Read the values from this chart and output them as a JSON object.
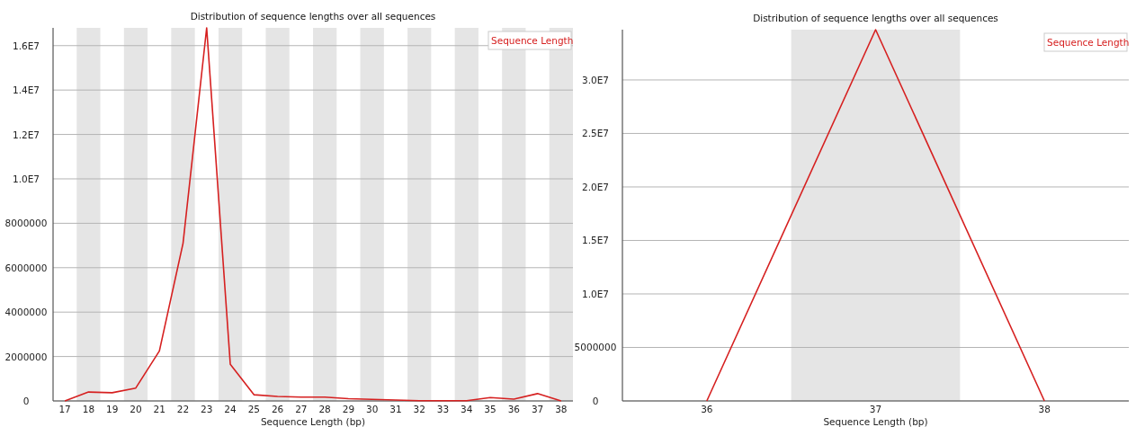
{
  "chart_data": [
    {
      "type": "line",
      "title": "Distribution of sequence lengths over all sequences",
      "xlabel": "Sequence Length (bp)",
      "x": [
        17,
        18,
        19,
        20,
        21,
        22,
        23,
        24,
        25,
        26,
        27,
        28,
        29,
        30,
        31,
        32,
        33,
        34,
        35,
        36,
        37,
        38
      ],
      "series": [
        {
          "name": "Sequence Length",
          "color": "#d62020",
          "values": [
            0,
            400000,
            370000,
            580000,
            2250000,
            7100000,
            16800000,
            1650000,
            280000,
            200000,
            170000,
            170000,
            100000,
            70000,
            40000,
            10000,
            10000,
            10000,
            150000,
            80000,
            330000,
            0
          ]
        }
      ],
      "xlim": [
        16.5,
        38.5
      ],
      "xticks": [
        17,
        18,
        19,
        20,
        21,
        22,
        23,
        24,
        25,
        26,
        27,
        28,
        29,
        30,
        31,
        32,
        33,
        34,
        35,
        36,
        37,
        38
      ],
      "ylim": [
        0,
        16800000
      ],
      "yticks": [
        0,
        2000000,
        4000000,
        6000000,
        8000000,
        {
          "value": 10000000,
          "label": "1.0E7"
        },
        {
          "value": 12000000,
          "label": "1.2E7"
        },
        {
          "value": 14000000,
          "label": "1.4E7"
        },
        {
          "value": 16000000,
          "label": "1.6E7"
        }
      ],
      "bands": [
        {
          "axis": "x",
          "from": 17.5,
          "to": 18.5,
          "color": "#e5e5e5"
        },
        {
          "axis": "x",
          "from": 19.5,
          "to": 20.5,
          "color": "#e5e5e5"
        },
        {
          "axis": "x",
          "from": 21.5,
          "to": 22.5,
          "color": "#e5e5e5"
        },
        {
          "axis": "x",
          "from": 23.5,
          "to": 24.5,
          "color": "#e5e5e5"
        },
        {
          "axis": "x",
          "from": 25.5,
          "to": 26.5,
          "color": "#e5e5e5"
        },
        {
          "axis": "x",
          "from": 27.5,
          "to": 28.5,
          "color": "#e5e5e5"
        },
        {
          "axis": "x",
          "from": 29.5,
          "to": 30.5,
          "color": "#e5e5e5"
        },
        {
          "axis": "x",
          "from": 31.5,
          "to": 32.5,
          "color": "#e5e5e5"
        },
        {
          "axis": "x",
          "from": 33.5,
          "to": 34.5,
          "color": "#e5e5e5"
        },
        {
          "axis": "x",
          "from": 35.5,
          "to": 36.5,
          "color": "#e5e5e5"
        },
        {
          "axis": "x",
          "from": 37.5,
          "to": 38.5,
          "color": "#e5e5e5"
        }
      ],
      "grid": "y",
      "legend": "top right",
      "marker": "none",
      "line_style": "solid"
    },
    {
      "type": "line",
      "title": "Distribution of sequence lengths over all sequences",
      "xlabel": "Sequence Length (bp)",
      "x": [
        36,
        37,
        38
      ],
      "series": [
        {
          "name": "Sequence Length",
          "color": "#d62020",
          "values": [
            0,
            34700000,
            0
          ]
        }
      ],
      "xlim": [
        35.5,
        38.5
      ],
      "xticks": [
        36,
        37,
        38
      ],
      "ylim": [
        0,
        34700000
      ],
      "yticks": [
        0,
        5000000,
        {
          "value": 10000000,
          "label": "1.0E7"
        },
        {
          "value": 15000000,
          "label": "1.5E7"
        },
        {
          "value": 20000000,
          "label": "2.0E7"
        },
        {
          "value": 25000000,
          "label": "2.5E7"
        },
        {
          "value": 30000000,
          "label": "3.0E7"
        }
      ],
      "bands": [
        {
          "axis": "x",
          "from": 36.5,
          "to": 37.5,
          "color": "#e5e5e5"
        }
      ],
      "grid": "y",
      "legend": "top right",
      "marker": "none",
      "line_style": "solid"
    }
  ]
}
